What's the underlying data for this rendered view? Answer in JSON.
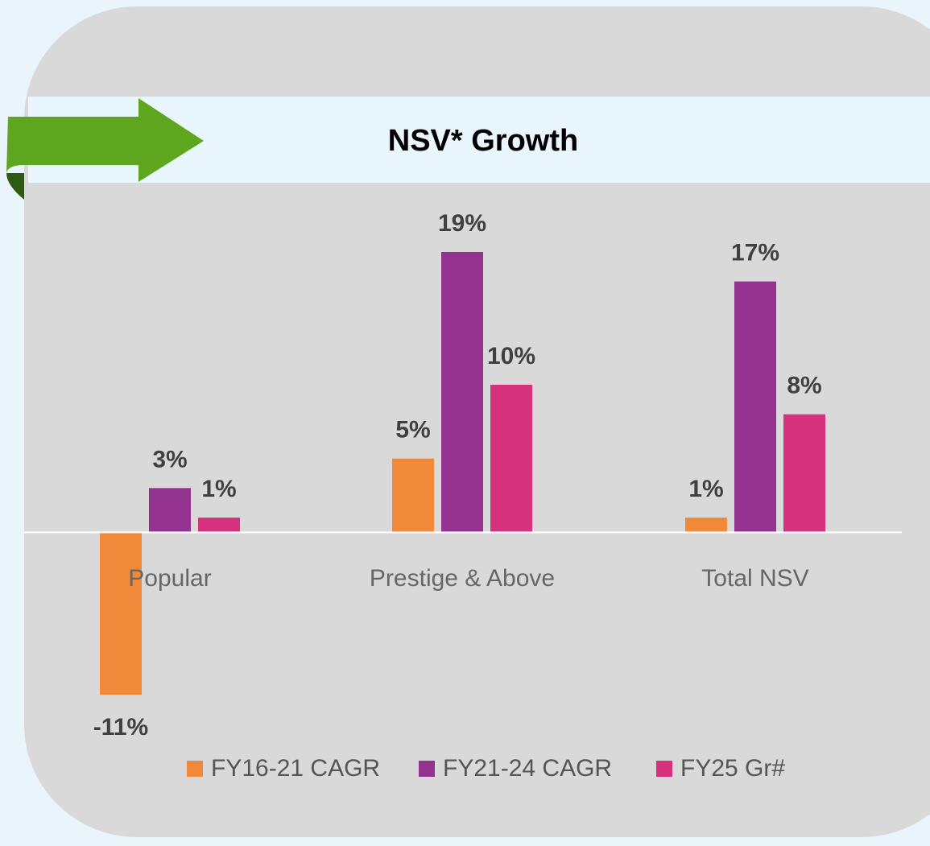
{
  "chart_data": {
    "type": "bar",
    "title": "NSV* Growth",
    "categories": [
      "Popular",
      "Prestige & Above",
      "Total NSV"
    ],
    "series": [
      {
        "name": "FY16-21 CAGR",
        "color": "#f08a3a",
        "values": [
          -11,
          5,
          1
        ],
        "value_labels": [
          "-11%",
          "5%",
          "1%"
        ]
      },
      {
        "name": "FY21-24 CAGR",
        "color": "#93338f",
        "values": [
          3,
          19,
          17
        ],
        "value_labels": [
          "3%",
          "19%",
          "17%"
        ]
      },
      {
        "name": "FY25 Gr#",
        "color": "#d6317d",
        "values": [
          1,
          10,
          8
        ],
        "value_labels": [
          "1%",
          "10%",
          "8%"
        ]
      }
    ],
    "legend": "bottom"
  }
}
